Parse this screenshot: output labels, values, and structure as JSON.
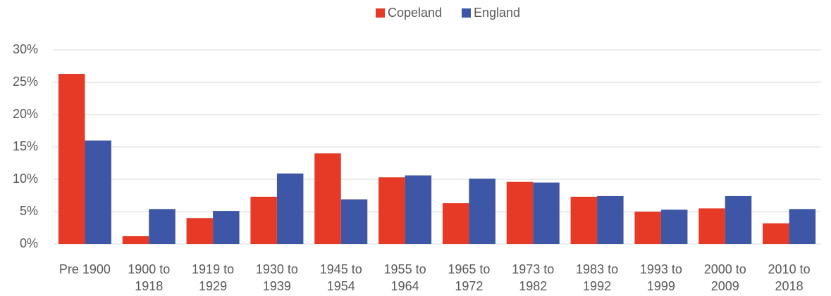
{
  "chart_data": {
    "type": "bar",
    "categories": [
      "Pre 1900",
      "1900 to 1918",
      "1919 to 1929",
      "1930 to 1939",
      "1945 to 1954",
      "1955 to 1964",
      "1965 to 1972",
      "1973 to 1982",
      "1983 to 1992",
      "1993 to 1999",
      "2000 to 2009",
      "2010 to 2018"
    ],
    "series": [
      {
        "name": "Copeland",
        "color": "#e63a27",
        "values": [
          26.3,
          1.2,
          4.0,
          7.3,
          14.0,
          10.3,
          6.3,
          9.6,
          7.3,
          5.0,
          5.5,
          3.2
        ]
      },
      {
        "name": "England",
        "color": "#3d56a5",
        "values": [
          16.0,
          5.4,
          5.1,
          10.9,
          6.9,
          10.6,
          10.1,
          9.5,
          7.4,
          5.3,
          7.4,
          5.4
        ]
      }
    ],
    "ylim": [
      0,
      30
    ],
    "yticks": [
      {
        "value": 0,
        "label": "0%"
      },
      {
        "value": 5,
        "label": "5%"
      },
      {
        "value": 10,
        "label": "10%"
      },
      {
        "value": 15,
        "label": "15%"
      },
      {
        "value": 20,
        "label": "20%"
      },
      {
        "value": 25,
        "label": "25%"
      },
      {
        "value": 30,
        "label": "30%"
      }
    ],
    "grid": true,
    "legend": "top"
  }
}
